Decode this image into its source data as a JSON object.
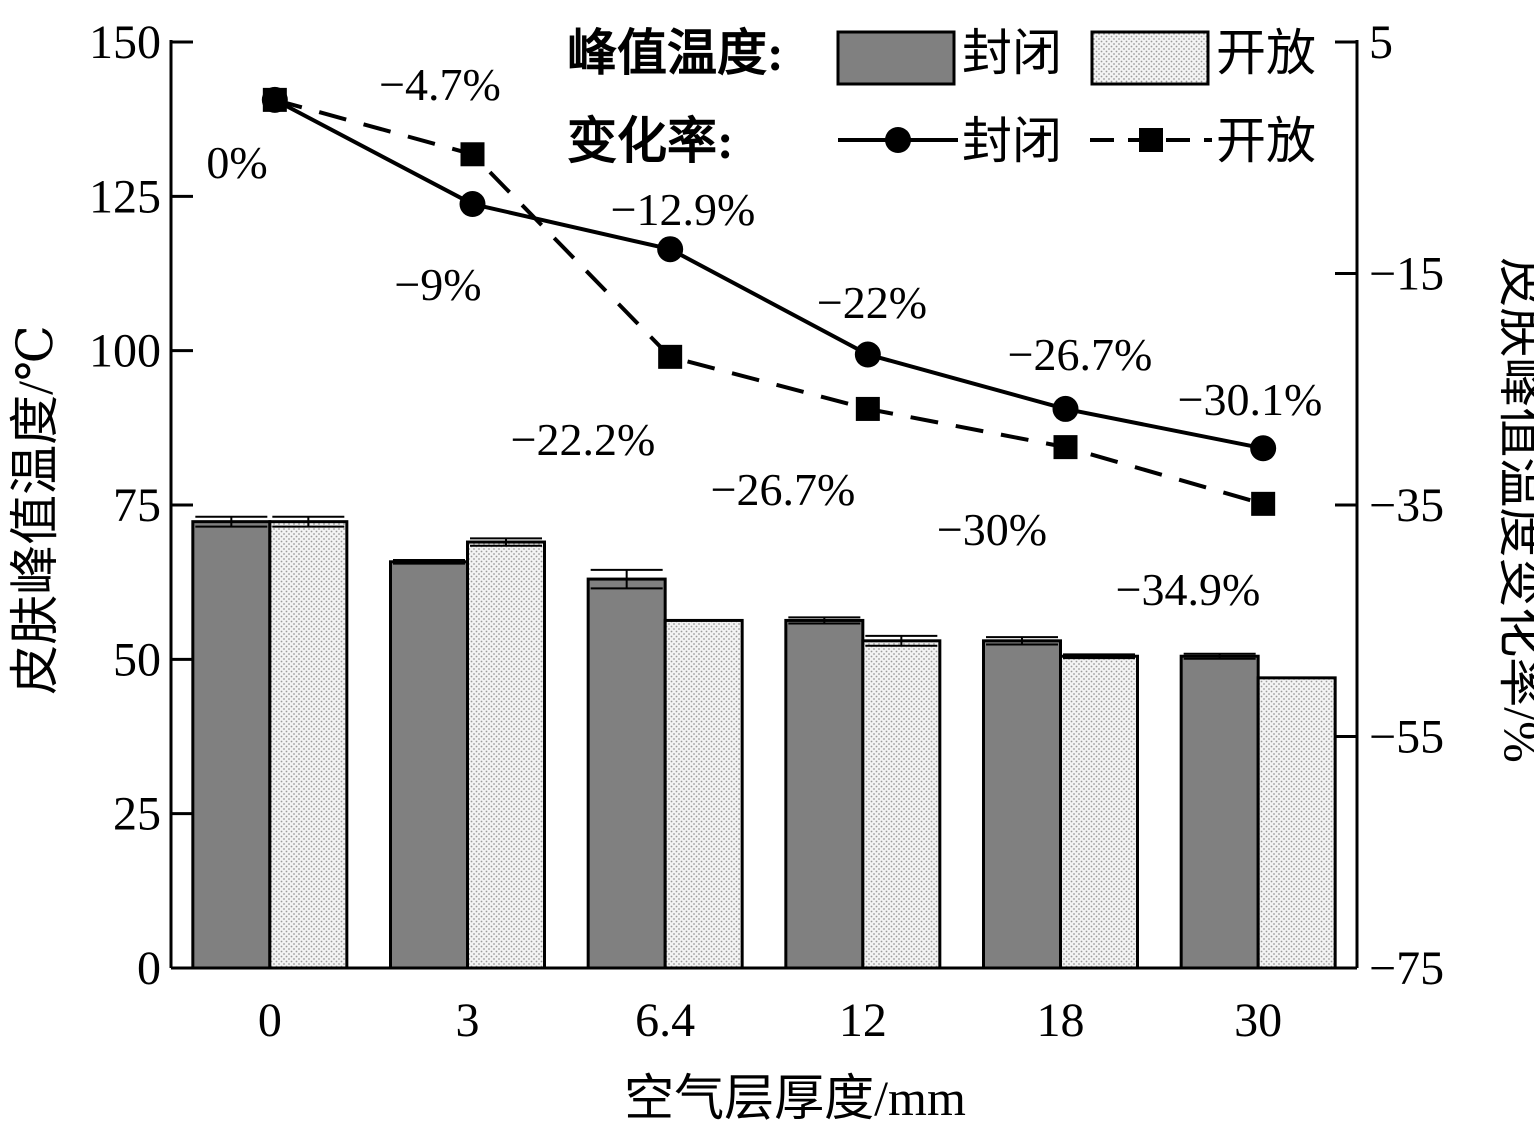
{
  "chart_data": {
    "type": "bar",
    "categories": [
      "0",
      "3",
      "6.4",
      "12",
      "18",
      "30"
    ],
    "xlabel": "空气层厚度/mm",
    "ylabel": "皮肤峰值温度/℃",
    "ylabel_right": "皮肤峰值温度变化率/%",
    "ylim": [
      0,
      150
    ],
    "yticks": [
      0,
      25,
      50,
      75,
      100,
      125,
      150
    ],
    "ylim_right": [
      -75,
      5
    ],
    "yticks_right": [
      -75,
      -55,
      -35,
      -15,
      5
    ],
    "legend": {
      "placement": "top-right",
      "group_bar": "峰值温度:",
      "group_line": "变化率:",
      "closed": "封闭",
      "open": "开放"
    },
    "bar_series": [
      {
        "name": "封闭",
        "values": [
          72.3,
          65.8,
          63.0,
          56.3,
          53.0,
          50.5
        ],
        "errors": [
          0.8,
          0.3,
          1.5,
          0.5,
          0.6,
          0.4
        ],
        "color": "#808080"
      },
      {
        "name": "开放",
        "values": [
          72.3,
          69.0,
          56.3,
          53.0,
          50.5,
          47.0
        ],
        "errors": [
          0.8,
          0.6,
          0.0,
          0.8,
          0.3,
          0.0
        ],
        "color": "#e8e8e8"
      }
    ],
    "line_series": [
      {
        "name": "封闭",
        "values": [
          0,
          -9,
          -12.9,
          -22,
          -26.7,
          -30.1
        ],
        "labels": [
          "0%",
          "−9%",
          "−12.9%",
          "−22%",
          "−26.7%",
          "−30.1%"
        ],
        "marker": "circle",
        "style": "solid"
      },
      {
        "name": "开放",
        "values": [
          0,
          -4.7,
          -22.2,
          -26.7,
          -30,
          -34.9
        ],
        "labels": [
          "",
          "−4.7%",
          "−22.2%",
          "−26.7%",
          "−30%",
          "−34.9%"
        ],
        "marker": "square",
        "style": "dashed"
      }
    ]
  }
}
